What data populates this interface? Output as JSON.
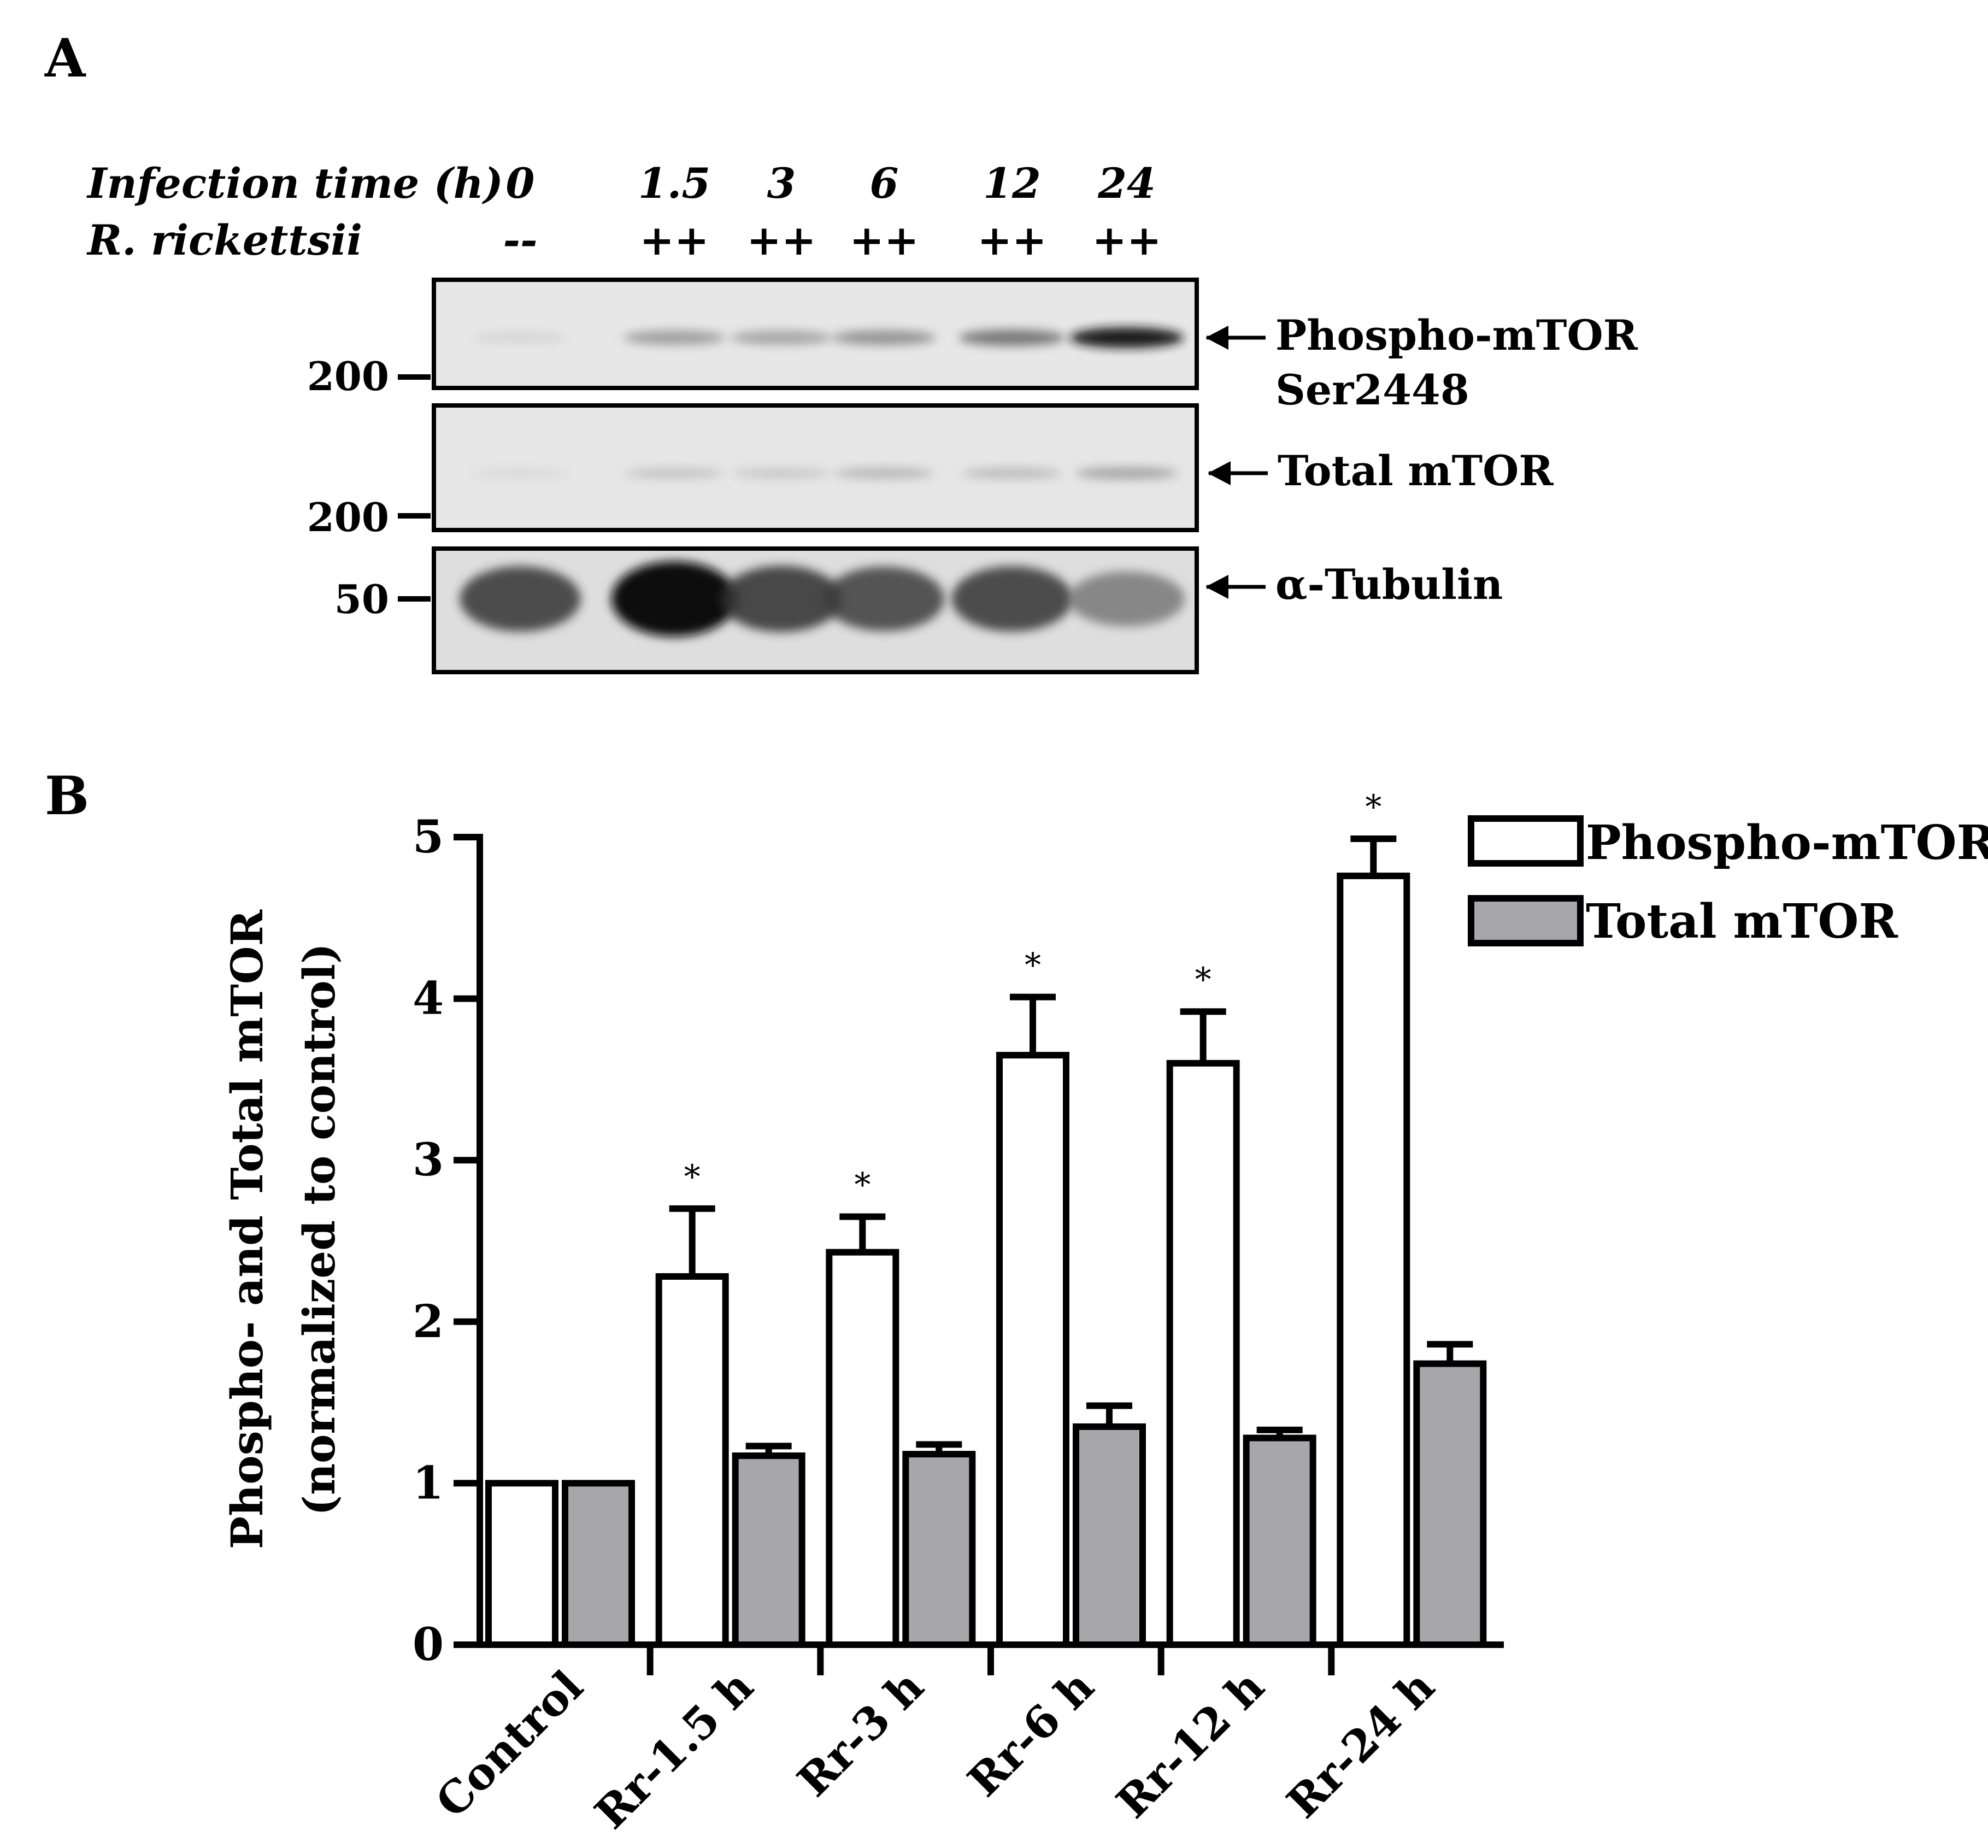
{
  "panel_a": {
    "letter": "A",
    "header_row1_label": "Infection time (h)",
    "header_row2_label": "R. rickettsii",
    "lanes": [
      {
        "time": "0",
        "treatment": "--"
      },
      {
        "time": "1.5",
        "treatment": "++"
      },
      {
        "time": "3",
        "treatment": "++"
      },
      {
        "time": "6",
        "treatment": "++"
      },
      {
        "time": "12",
        "treatment": "++"
      },
      {
        "time": "24",
        "treatment": "++"
      }
    ],
    "blots": [
      {
        "label_line1": "Phospho-mTOR",
        "label_line2": "Ser2448",
        "mw_marker": "200",
        "band_intensity": [
          0.12,
          0.45,
          0.42,
          0.5,
          0.62,
          0.95
        ]
      },
      {
        "label_line1": "Total mTOR",
        "label_line2": "",
        "mw_marker": "200",
        "band_intensity": [
          0.08,
          0.25,
          0.22,
          0.32,
          0.3,
          0.42
        ]
      },
      {
        "label_line1": "α-Tubulin",
        "label_line2": "",
        "mw_marker": "50",
        "band_intensity": [
          0.78,
          1.0,
          0.8,
          0.76,
          0.78,
          0.55
        ]
      }
    ]
  },
  "panel_b": {
    "letter": "B"
  },
  "chart_data": {
    "type": "bar",
    "title": "",
    "xlabel": "",
    "ylabel_line1": "Phospho- and Total mTOR",
    "ylabel_line2": "(normalized to control)",
    "ylim": [
      0,
      5
    ],
    "yticks": [
      "0",
      "1",
      "2",
      "3",
      "4",
      "5"
    ],
    "categories": [
      "Control",
      "Rr-1.5 h",
      "Rr-3 h",
      "Rr-6 h",
      "Rr-12 h",
      "Rr-24 h"
    ],
    "series": [
      {
        "name": "Phospho-mTOR",
        "color": "#ffffff",
        "values": [
          1.0,
          2.28,
          2.43,
          3.65,
          3.6,
          4.76
        ],
        "errors": [
          0.0,
          0.42,
          0.22,
          0.36,
          0.32,
          0.23
        ],
        "significance": [
          "",
          "*",
          "*",
          "*",
          "*",
          "*"
        ]
      },
      {
        "name": "Total mTOR",
        "color": "#a7a6ab",
        "values": [
          1.0,
          1.17,
          1.18,
          1.35,
          1.28,
          1.74
        ],
        "errors": [
          0.0,
          0.06,
          0.06,
          0.13,
          0.05,
          0.12
        ],
        "significance": [
          "",
          "",
          "",
          "",
          "",
          ""
        ]
      }
    ],
    "legend_position": "top-right",
    "grid": false
  }
}
